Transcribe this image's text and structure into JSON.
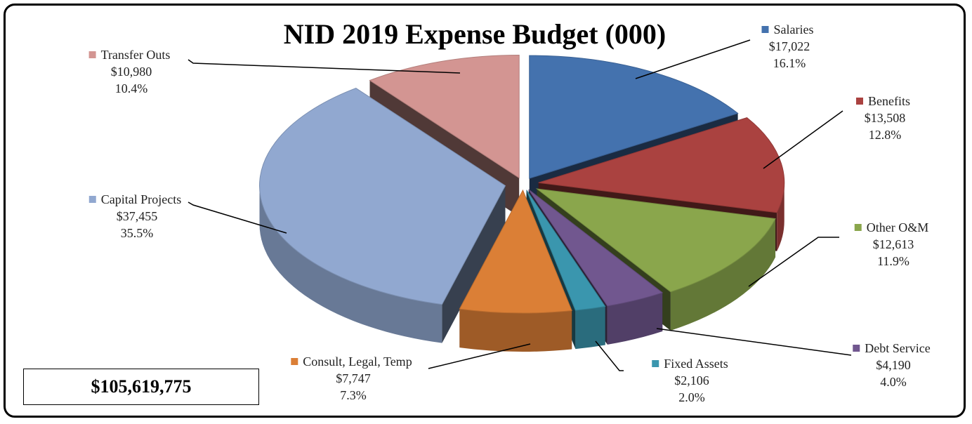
{
  "chart_data": {
    "type": "pie",
    "title": "NID 2019 Expense Budget (000)",
    "total": "$105,619,775",
    "slices": [
      {
        "name": "Salaries",
        "value_label": "$17,022",
        "percent_label": "16.1%",
        "value": 17022,
        "percent": 16.1,
        "color": "#4472ae"
      },
      {
        "name": "Benefits",
        "value_label": "$13,508",
        "percent_label": "12.8%",
        "value": 13508,
        "percent": 12.8,
        "color": "#aa4240"
      },
      {
        "name": "Other O&M",
        "value_label": "$12,613",
        "percent_label": "11.9%",
        "value": 12613,
        "percent": 11.9,
        "color": "#8aa64c"
      },
      {
        "name": "Debt Service",
        "value_label": "$4,190",
        "percent_label": "4.0%",
        "value": 4190,
        "percent": 4.0,
        "color": "#71578f"
      },
      {
        "name": "Fixed Assets",
        "value_label": "$2,106",
        "percent_label": "2.0%",
        "value": 2106,
        "percent": 2.0,
        "color": "#3a96ae"
      },
      {
        "name": "Consult, Legal, Temp",
        "value_label": "$7,747",
        "percent_label": "7.3%",
        "value": 7747,
        "percent": 7.3,
        "color": "#db7f36"
      },
      {
        "name": "Capital Projects",
        "value_label": "$37,455",
        "percent_label": "35.5%",
        "value": 37455,
        "percent": 35.5,
        "color": "#91a8d0"
      },
      {
        "name": "Transfer Outs",
        "value_label": "$10,980",
        "percent_label": "10.4%",
        "value": 10980,
        "percent": 10.4,
        "color": "#d39592"
      }
    ]
  }
}
